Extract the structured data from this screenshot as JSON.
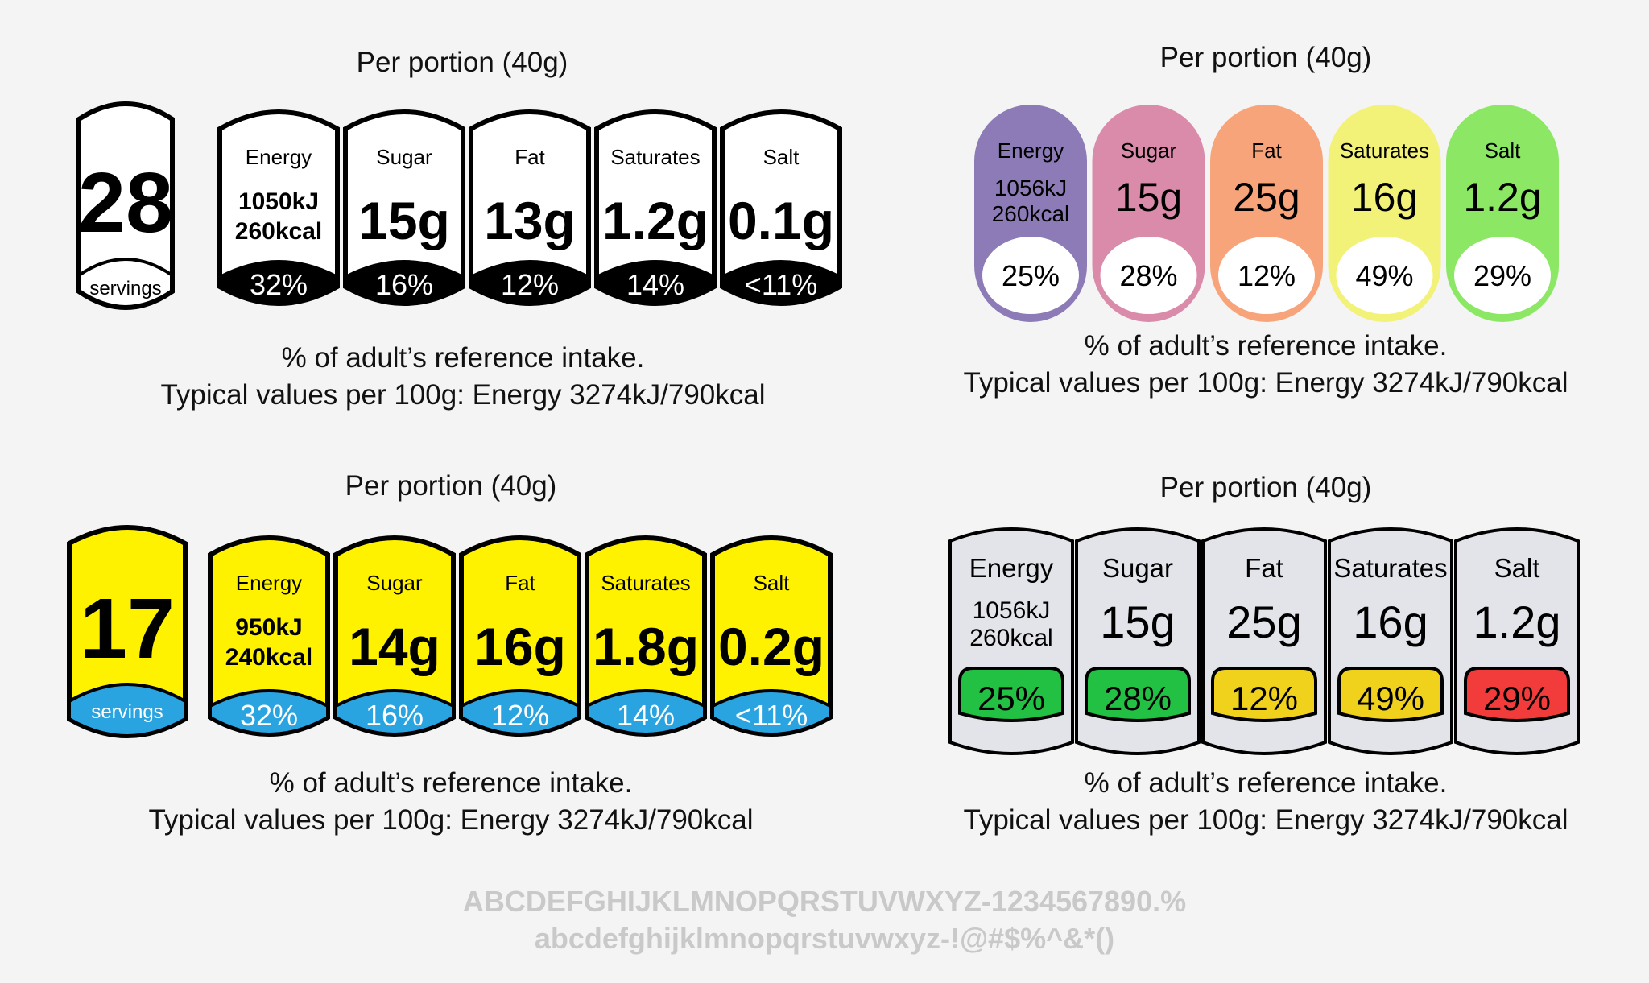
{
  "labels": [
    {
      "id": "mono",
      "title": "Per portion (40g)",
      "servings_count": "28",
      "servings_label": "servings",
      "items": [
        {
          "name": "Energy",
          "value_line1": "1050kJ",
          "value_line2": "260kcal",
          "percent": "32%"
        },
        {
          "name": "Sugar",
          "value": "15g",
          "percent": "16%"
        },
        {
          "name": "Fat",
          "value": "13g",
          "percent": "12%"
        },
        {
          "name": "Saturates",
          "value": "1.2g",
          "percent": "14%"
        },
        {
          "name": "Salt",
          "value": "0.1g",
          "percent": "<11%"
        }
      ],
      "footnote_line1": "% of adult’s reference intake.",
      "footnote_line2": "Typical values per 100g: Energy 3274kJ/790kcal",
      "colors": {
        "body": "#ffffff",
        "band": "#000000",
        "percent_text": "#ffffff"
      }
    },
    {
      "id": "pastel",
      "title": "Per portion (40g)",
      "items": [
        {
          "name": "Energy",
          "value_line1": "1056kJ",
          "value_line2": "260kcal",
          "percent": "25%",
          "color": "#8c7bb6"
        },
        {
          "name": "Sugar",
          "value": "15g",
          "percent": "28%",
          "color": "#d98ba9"
        },
        {
          "name": "Fat",
          "value": "25g",
          "percent": "12%",
          "color": "#f7a47a"
        },
        {
          "name": "Saturates",
          "value": "16g",
          "percent": "49%",
          "color": "#f2f278"
        },
        {
          "name": "Salt",
          "value": "1.2g",
          "percent": "29%",
          "color": "#8be764"
        }
      ],
      "footnote_line1": "% of adult’s reference intake.",
      "footnote_line2": "Typical values per 100g: Energy 3274kJ/790kcal"
    },
    {
      "id": "yellow",
      "title": "Per portion (40g)",
      "servings_count": "17",
      "servings_label": "servings",
      "items": [
        {
          "name": "Energy",
          "value_line1": "950kJ",
          "value_line2": "240kcal",
          "percent": "32%"
        },
        {
          "name": "Sugar",
          "value": "14g",
          "percent": "16%"
        },
        {
          "name": "Fat",
          "value": "16g",
          "percent": "12%"
        },
        {
          "name": "Saturates",
          "value": "1.8g",
          "percent": "14%"
        },
        {
          "name": "Salt",
          "value": "0.2g",
          "percent": "<11%"
        }
      ],
      "footnote_line1": "% of adult’s reference intake.",
      "footnote_line2": "Typical values per 100g: Energy 3274kJ/790kcal",
      "colors": {
        "body": "#fff200",
        "band": "#2aa4e0",
        "percent_text": "#ffffff"
      }
    },
    {
      "id": "traffic",
      "title": "Per portion (40g)",
      "items": [
        {
          "name": "Energy",
          "value_line1": "1056kJ",
          "value_line2": "260kcal",
          "percent": "25%",
          "color": "#22c043"
        },
        {
          "name": "Sugar",
          "value": "15g",
          "percent": "28%",
          "color": "#22c043"
        },
        {
          "name": "Fat",
          "value": "25g",
          "percent": "12%",
          "color": "#f0d21c"
        },
        {
          "name": "Saturates",
          "value": "16g",
          "percent": "49%",
          "color": "#f0d21c"
        },
        {
          "name": "Salt",
          "value": "1.2g",
          "percent": "29%",
          "color": "#f23b3b"
        }
      ],
      "footnote_line1": "% of adult’s reference intake.",
      "footnote_line2": "Typical values per 100g: Energy 3274kJ/790kcal",
      "colors": {
        "body": "#e3e4ea"
      }
    }
  ],
  "font_sample": {
    "line1": "ABCDEFGHIJKLMNOPQRSTUVWXYZ-1234567890.%",
    "line2": "abcdefghijklmnopqrstuvwxyz-!@#$%^&*()"
  }
}
